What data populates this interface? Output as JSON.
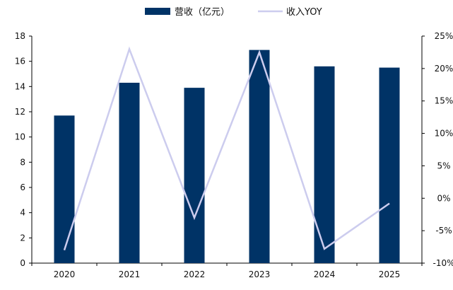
{
  "colors": {
    "bar": "#003366",
    "line": "#ccccee",
    "axis": "#000000",
    "text": "#111111"
  },
  "legend": {
    "bar_label": "营收（亿元）",
    "line_label": "收入YOY"
  },
  "chart_data": {
    "type": "bar",
    "categories": [
      "2020",
      "2021",
      "2022",
      "2023",
      "2024",
      "2025"
    ],
    "series": [
      {
        "name": "营收（亿元）",
        "type": "bar",
        "axis": "left",
        "values": [
          11.7,
          14.3,
          13.9,
          16.9,
          15.6,
          15.5
        ]
      },
      {
        "name": "收入YOY",
        "type": "line",
        "axis": "right",
        "values": [
          -8.0,
          23.0,
          -3.0,
          22.5,
          -7.8,
          -0.8
        ]
      }
    ],
    "ylim": [
      0,
      18
    ],
    "y_ticks": [
      "0",
      "2",
      "4",
      "6",
      "8",
      "10",
      "12",
      "14",
      "16",
      "18"
    ],
    "y2lim": [
      -10,
      25
    ],
    "y2_ticks": [
      "-10%",
      "-5%",
      "0%",
      "5%",
      "10%",
      "15%",
      "20%",
      "25%"
    ],
    "grid": false,
    "legend_position": "top-center"
  }
}
